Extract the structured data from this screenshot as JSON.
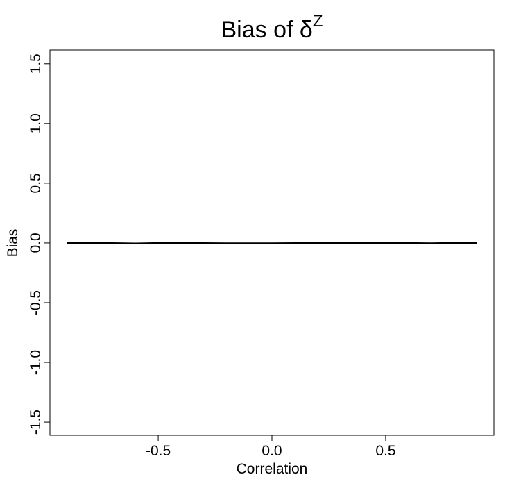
{
  "chart_data": {
    "type": "line",
    "title": "Bias of δ",
    "title_superscript": "Z",
    "x_label": "Correlation",
    "y_label": "Bias",
    "x": [
      -0.9,
      -0.8,
      -0.7,
      -0.6,
      -0.5,
      -0.4,
      -0.3,
      -0.2,
      -0.1,
      0.0,
      0.1,
      0.2,
      0.3,
      0.4,
      0.5,
      0.6,
      0.7,
      0.8,
      0.9
    ],
    "series": [
      {
        "name": "Bias",
        "color": "#000000",
        "values": [
          0.0,
          -0.001,
          -0.002,
          -0.005,
          -0.001,
          -0.001,
          -0.002,
          -0.003,
          -0.003,
          -0.003,
          -0.002,
          -0.002,
          -0.002,
          -0.001,
          -0.002,
          -0.001,
          -0.003,
          -0.001,
          0.0
        ]
      }
    ],
    "xlim": [
      -0.976,
      0.976
    ],
    "ylim": [
      -1.61,
      1.615
    ],
    "xticks": [
      -0.5,
      {
        "value": 0,
        "label": "0.0"
      },
      0.5
    ],
    "yticks": [
      {
        "value": -1.5,
        "label": "-1.5"
      },
      {
        "value": -1,
        "label": "-1.0"
      },
      -0.5,
      {
        "value": 0,
        "label": "0.0"
      },
      0.5,
      {
        "value": 1,
        "label": "1.0"
      },
      1.5
    ],
    "grid": false
  }
}
